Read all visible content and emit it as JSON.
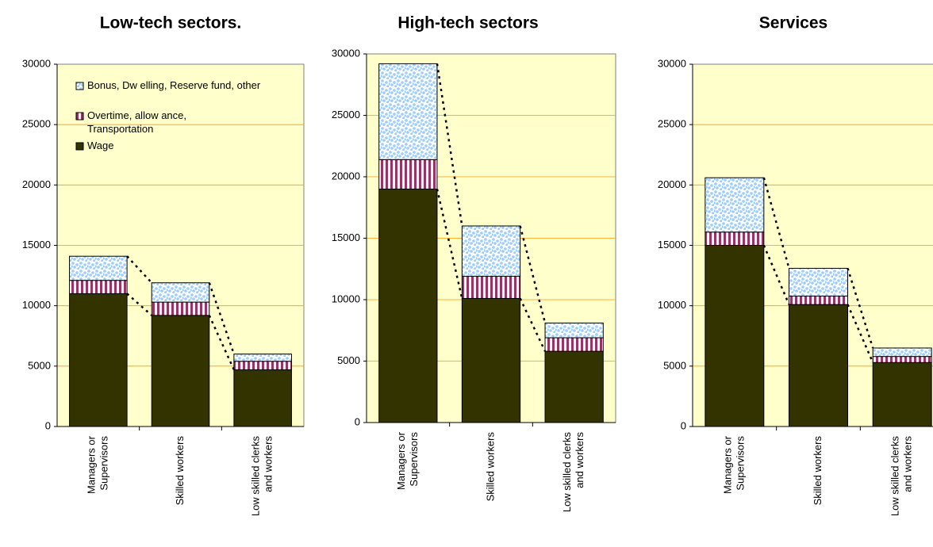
{
  "chart_data": [
    {
      "type": "stacked_bar",
      "title": "Low-tech sectors.",
      "categories": [
        [
          "Managers or",
          "Supervisors"
        ],
        [
          "Skilled workers"
        ],
        [
          "Low skilled clerks",
          "and workers"
        ]
      ],
      "series": [
        {
          "name": "Wage",
          "color": "#333300",
          "values": [
            11000,
            9200,
            4700
          ]
        },
        {
          "name": "Overtime, allow ance, Transportation",
          "color": "#993366",
          "values": [
            1100,
            1100,
            700
          ]
        },
        {
          "name": "Bonus, Dw elling, Reserve fund, other",
          "color": "#99ccff",
          "values": [
            2000,
            1600,
            600
          ]
        }
      ],
      "ylim": [
        0,
        30000
      ],
      "yticks": [
        0,
        5000,
        10000,
        15000,
        20000,
        25000,
        30000
      ],
      "grid": true,
      "legend": "upper left"
    },
    {
      "type": "stacked_bar",
      "title": "High-tech sectors",
      "categories": [
        [
          "Managers or",
          "Supervisors"
        ],
        [
          "Skilled workers"
        ],
        [
          "Low skilled clerks",
          "and workers"
        ]
      ],
      "series": [
        {
          "name": "Wage",
          "color": "#333300",
          "values": [
            19000,
            10100,
            5800
          ]
        },
        {
          "name": "Overtime, allow ance, Transportation",
          "color": "#993366",
          "values": [
            2400,
            1800,
            1100
          ]
        },
        {
          "name": "Bonus, Dw elling, Reserve fund, other",
          "color": "#99ccff",
          "values": [
            7800,
            4100,
            1200
          ]
        }
      ],
      "ylim": [
        0,
        30000
      ],
      "yticks": [
        0,
        5000,
        10000,
        15000,
        20000,
        25000,
        30000
      ],
      "grid": true
    },
    {
      "type": "stacked_bar",
      "title": "Services",
      "categories": [
        [
          "Managers or",
          "Supervisors"
        ],
        [
          "Skilled workers"
        ],
        [
          "Low skilled clerks",
          "and workers"
        ]
      ],
      "series": [
        {
          "name": "Wage",
          "color": "#333300",
          "values": [
            15000,
            10100,
            5300
          ]
        },
        {
          "name": "Overtime, allow ance, Transportation",
          "color": "#993366",
          "values": [
            1100,
            700,
            500
          ]
        },
        {
          "name": "Bonus, Dw elling, Reserve fund, other",
          "color": "#99ccff",
          "values": [
            4500,
            2300,
            700
          ]
        }
      ],
      "ylim": [
        0,
        30000
      ],
      "yticks": [
        0,
        5000,
        10000,
        15000,
        20000,
        25000,
        30000
      ],
      "grid": true
    }
  ]
}
